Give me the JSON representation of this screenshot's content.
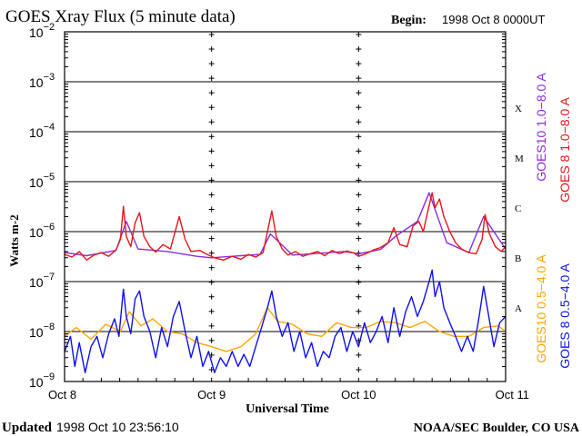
{
  "chart_data": {
    "type": "line",
    "title": "GOES Xray Flux (5 minute data)",
    "begin_label": "Begin:",
    "begin_value": "1998 Oct 8 0000UT",
    "ylabel": "Watts m-2",
    "xlabel": "Universal Time",
    "y_scale": "log",
    "ylim": [
      1e-09,
      0.01
    ],
    "y_ticks": [
      {
        "value": 0.01,
        "base": "10",
        "exp": "−2"
      },
      {
        "value": 0.001,
        "base": "10",
        "exp": "−3"
      },
      {
        "value": 0.0001,
        "base": "10",
        "exp": "−4"
      },
      {
        "value": 1e-05,
        "base": "10",
        "exp": "−5"
      },
      {
        "value": 1e-06,
        "base": "10",
        "exp": "−6"
      },
      {
        "value": 1e-07,
        "base": "10",
        "exp": "−7"
      },
      {
        "value": 1e-08,
        "base": "10",
        "exp": "−8"
      },
      {
        "value": 1e-09,
        "base": "10",
        "exp": "−9"
      }
    ],
    "x_ticks": [
      "Oct 8",
      "Oct 9",
      "Oct 10",
      "Oct 11"
    ],
    "x_range_days": [
      0,
      3
    ],
    "flare_classes": [
      {
        "label": "X",
        "value": 0.0003
      },
      {
        "label": "M",
        "value": 3e-05
      },
      {
        "label": "C",
        "value": 3e-06
      },
      {
        "label": "B",
        "value": 3e-07
      },
      {
        "label": "A",
        "value": 3e-08
      }
    ],
    "legend_right": [
      {
        "text": "GOES10 1.0−8.0 A",
        "color": "#8a2be2"
      },
      {
        "text": "GOES 8 1.0−8.0 A",
        "color": "#e8141b"
      },
      {
        "text": "GOES10 0.5−4.0 A",
        "color": "#ffa500"
      },
      {
        "text": "GOES 8 0.5−4.0 A",
        "color": "#1010f0"
      }
    ],
    "series": [
      {
        "name": "GOES10 1.0−8.0 A",
        "color": "#8a2be2",
        "points": [
          [
            0.0,
            3.8e-07
          ],
          [
            0.15,
            3.3e-07
          ],
          [
            0.35,
            4.2e-07
          ],
          [
            0.42,
            1.6e-06
          ],
          [
            0.5,
            4.5e-07
          ],
          [
            0.7,
            4e-07
          ],
          [
            0.9,
            3.2e-07
          ],
          [
            1.0,
            3e-07
          ],
          [
            1.2,
            3.3e-07
          ],
          [
            1.33,
            3.5e-07
          ],
          [
            1.4,
            9e-07
          ],
          [
            1.55,
            3.4e-07
          ],
          [
            1.75,
            3.7e-07
          ],
          [
            1.9,
            4e-07
          ],
          [
            2.0,
            3.6e-07
          ],
          [
            2.15,
            4.4e-07
          ],
          [
            2.25,
            8e-07
          ],
          [
            2.4,
            1.6e-06
          ],
          [
            2.48,
            6e-06
          ],
          [
            2.6,
            6e-07
          ],
          [
            2.75,
            3.8e-07
          ],
          [
            2.85,
            2e-06
          ],
          [
            3.0,
            4.5e-07
          ]
        ]
      },
      {
        "name": "GOES 8 1.0−8.0 A",
        "color": "#e8141b",
        "points": [
          [
            0.0,
            3.5e-07
          ],
          [
            0.05,
            3.1e-07
          ],
          [
            0.1,
            4e-07
          ],
          [
            0.15,
            2.7e-07
          ],
          [
            0.2,
            3.4e-07
          ],
          [
            0.25,
            3.8e-07
          ],
          [
            0.3,
            3.2e-07
          ],
          [
            0.35,
            4.3e-07
          ],
          [
            0.38,
            7e-07
          ],
          [
            0.4,
            3.2e-06
          ],
          [
            0.42,
            8e-07
          ],
          [
            0.45,
            5e-07
          ],
          [
            0.48,
            1.5e-06
          ],
          [
            0.51,
            2.4e-06
          ],
          [
            0.54,
            8e-07
          ],
          [
            0.58,
            5e-07
          ],
          [
            0.62,
            3.9e-07
          ],
          [
            0.67,
            5.5e-07
          ],
          [
            0.72,
            4.5e-07
          ],
          [
            0.78,
            2e-06
          ],
          [
            0.82,
            7e-07
          ],
          [
            0.86,
            4e-07
          ],
          [
            0.92,
            4.2e-07
          ],
          [
            0.97,
            3.5e-07
          ],
          [
            1.02,
            3e-07
          ],
          [
            1.08,
            2.7e-07
          ],
          [
            1.14,
            3.2e-07
          ],
          [
            1.2,
            2.8e-07
          ],
          [
            1.25,
            3.5e-07
          ],
          [
            1.3,
            3.1e-07
          ],
          [
            1.35,
            3.8e-07
          ],
          [
            1.38,
            1e-06
          ],
          [
            1.41,
            2.6e-06
          ],
          [
            1.44,
            8e-07
          ],
          [
            1.48,
            4.5e-07
          ],
          [
            1.52,
            3.4e-07
          ],
          [
            1.57,
            4e-07
          ],
          [
            1.62,
            3.2e-07
          ],
          [
            1.67,
            3.6e-07
          ],
          [
            1.72,
            4e-07
          ],
          [
            1.77,
            3.3e-07
          ],
          [
            1.82,
            4.2e-07
          ],
          [
            1.87,
            3.6e-07
          ],
          [
            1.92,
            4.1e-07
          ],
          [
            1.97,
            3.7e-07
          ],
          [
            2.0,
            3.2e-07
          ],
          [
            2.05,
            3.6e-07
          ],
          [
            2.1,
            4.3e-07
          ],
          [
            2.15,
            4.8e-07
          ],
          [
            2.2,
            6e-07
          ],
          [
            2.24,
            1.2e-06
          ],
          [
            2.28,
            5.5e-07
          ],
          [
            2.33,
            5e-07
          ],
          [
            2.37,
            1.3e-06
          ],
          [
            2.41,
            1.6e-06
          ],
          [
            2.44,
            1e-06
          ],
          [
            2.47,
            2.5e-06
          ],
          [
            2.5,
            6e-06
          ],
          [
            2.52,
            3e-06
          ],
          [
            2.55,
            4.5e-06
          ],
          [
            2.58,
            2e-06
          ],
          [
            2.62,
            1e-06
          ],
          [
            2.66,
            6e-07
          ],
          [
            2.7,
            4.5e-07
          ],
          [
            2.75,
            3.8e-07
          ],
          [
            2.8,
            3.6e-07
          ],
          [
            2.84,
            7e-07
          ],
          [
            2.86,
            2.2e-06
          ],
          [
            2.89,
            9e-07
          ],
          [
            2.93,
            5e-07
          ],
          [
            2.97,
            4e-07
          ],
          [
            3.0,
            5e-07
          ]
        ]
      },
      {
        "name": "GOES10 0.5−4.0 A",
        "color": "#ffa500",
        "points": [
          [
            0.0,
            8e-09
          ],
          [
            0.08,
            1.2e-08
          ],
          [
            0.18,
            7e-09
          ],
          [
            0.28,
            1.4e-08
          ],
          [
            0.38,
            1e-08
          ],
          [
            0.44,
            2.5e-08
          ],
          [
            0.52,
            1.3e-08
          ],
          [
            0.6,
            1.8e-08
          ],
          [
            0.7,
            1e-08
          ],
          [
            0.8,
            9e-09
          ],
          [
            0.9,
            6e-09
          ],
          [
            1.0,
            5e-09
          ],
          [
            1.1,
            4e-09
          ],
          [
            1.2,
            5e-09
          ],
          [
            1.3,
            9e-09
          ],
          [
            1.38,
            3e-08
          ],
          [
            1.45,
            1.6e-08
          ],
          [
            1.55,
            1.4e-08
          ],
          [
            1.65,
            9e-09
          ],
          [
            1.75,
            8e-09
          ],
          [
            1.85,
            1.5e-08
          ],
          [
            1.95,
            1.2e-08
          ],
          [
            2.05,
            1.2e-08
          ],
          [
            2.15,
            1.6e-08
          ],
          [
            2.25,
            1.5e-08
          ],
          [
            2.35,
            1.2e-08
          ],
          [
            2.45,
            1.6e-08
          ],
          [
            2.55,
            1e-08
          ],
          [
            2.65,
            8e-09
          ],
          [
            2.75,
            8e-09
          ],
          [
            2.85,
            1.2e-08
          ],
          [
            2.95,
            1.3e-08
          ],
          [
            3.0,
            1e-08
          ]
        ]
      },
      {
        "name": "GOES 8 0.5−4.0 A",
        "color": "#1010f0",
        "points": [
          [
            0.0,
            4e-09
          ],
          [
            0.04,
            8e-09
          ],
          [
            0.07,
            2e-09
          ],
          [
            0.1,
            6e-09
          ],
          [
            0.14,
            1.5e-09
          ],
          [
            0.18,
            5e-09
          ],
          [
            0.22,
            8e-09
          ],
          [
            0.26,
            3e-09
          ],
          [
            0.3,
            9e-09
          ],
          [
            0.34,
            1.8e-08
          ],
          [
            0.37,
            8e-09
          ],
          [
            0.4,
            7e-08
          ],
          [
            0.42,
            2e-08
          ],
          [
            0.45,
            9e-09
          ],
          [
            0.48,
            4.5e-08
          ],
          [
            0.51,
            6.5e-08
          ],
          [
            0.54,
            2e-08
          ],
          [
            0.58,
            1e-08
          ],
          [
            0.62,
            3e-09
          ],
          [
            0.66,
            1.2e-08
          ],
          [
            0.7,
            5e-09
          ],
          [
            0.74,
            2e-08
          ],
          [
            0.78,
            4e-08
          ],
          [
            0.82,
            1e-08
          ],
          [
            0.86,
            3e-09
          ],
          [
            0.9,
            8e-09
          ],
          [
            0.94,
            2e-09
          ],
          [
            0.98,
            4e-09
          ],
          [
            1.02,
            1.5e-09
          ],
          [
            1.06,
            3e-09
          ],
          [
            1.1,
            2e-09
          ],
          [
            1.14,
            4e-09
          ],
          [
            1.18,
            2e-09
          ],
          [
            1.22,
            3.5e-09
          ],
          [
            1.26,
            2e-09
          ],
          [
            1.3,
            5e-09
          ],
          [
            1.34,
            1.2e-08
          ],
          [
            1.38,
            3e-08
          ],
          [
            1.41,
            6.5e-08
          ],
          [
            1.44,
            2e-08
          ],
          [
            1.48,
            8e-09
          ],
          [
            1.52,
            1.5e-08
          ],
          [
            1.56,
            4e-09
          ],
          [
            1.6,
            1e-08
          ],
          [
            1.64,
            3e-09
          ],
          [
            1.68,
            6e-09
          ],
          [
            1.72,
            2e-09
          ],
          [
            1.76,
            4e-09
          ],
          [
            1.8,
            3e-09
          ],
          [
            1.84,
            8e-09
          ],
          [
            1.88,
            1.2e-08
          ],
          [
            1.92,
            4e-09
          ],
          [
            1.96,
            1e-08
          ],
          [
            2.0,
            5e-09
          ],
          [
            2.04,
            1.5e-08
          ],
          [
            2.08,
            6e-09
          ],
          [
            2.12,
            1e-08
          ],
          [
            2.16,
            2e-08
          ],
          [
            2.2,
            6e-09
          ],
          [
            2.24,
            3e-08
          ],
          [
            2.28,
            8e-09
          ],
          [
            2.32,
            2.5e-08
          ],
          [
            2.36,
            5e-08
          ],
          [
            2.4,
            2e-08
          ],
          [
            2.44,
            4e-08
          ],
          [
            2.48,
            1e-07
          ],
          [
            2.5,
            1.7e-07
          ],
          [
            2.52,
            5e-08
          ],
          [
            2.55,
            1e-07
          ],
          [
            2.58,
            3e-08
          ],
          [
            2.62,
            1.5e-08
          ],
          [
            2.66,
            8e-09
          ],
          [
            2.7,
            4e-09
          ],
          [
            2.74,
            8e-09
          ],
          [
            2.78,
            4e-09
          ],
          [
            2.82,
            2e-08
          ],
          [
            2.85,
            8e-08
          ],
          [
            2.88,
            2.5e-08
          ],
          [
            2.92,
            5e-09
          ],
          [
            2.96,
            1.5e-08
          ],
          [
            3.0,
            2e-08
          ]
        ]
      }
    ],
    "footer_updated_label": "Updated",
    "footer_updated_value": "1998 Oct 10 23:56:10",
    "footer_source": "NOAA/SEC Boulder, CO USA",
    "grid": true
  }
}
